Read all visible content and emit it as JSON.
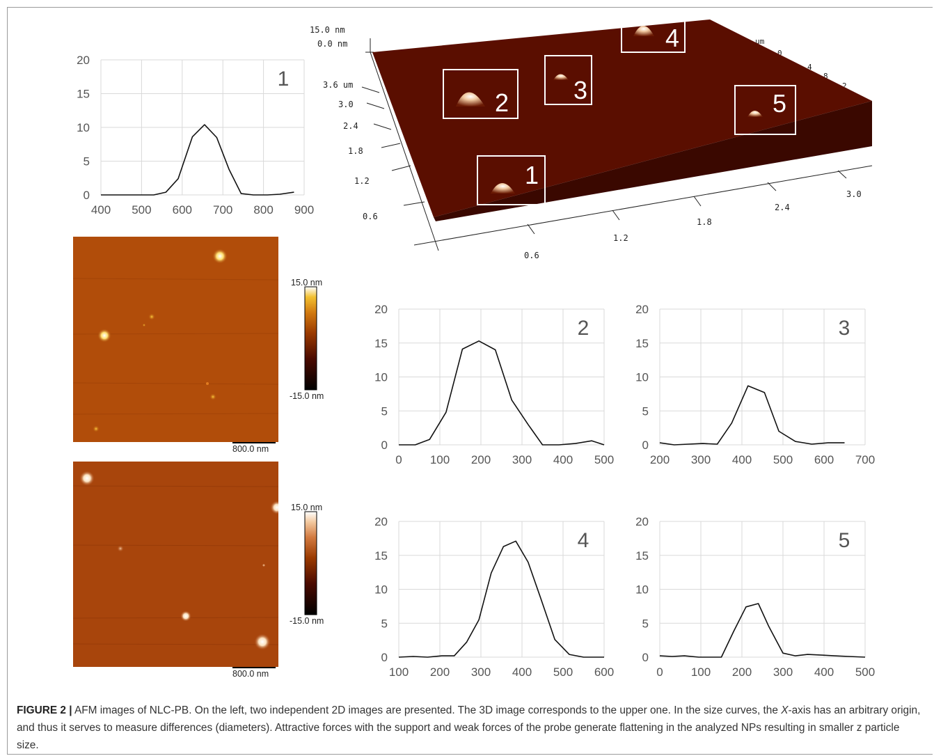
{
  "caption": {
    "label": "FIGURE 2 |",
    "text_1": " AFM images of NLC-PB. On the left, two independent 2D images are presented. The 3D image corresponds to the upper one. In the size curves, the ",
    "italic": "X",
    "text_2": "-axis has an arbitrary origin, and thus it serves to measure differences (diameters). Attractive forces with the support and weak forces of the probe generate flattening in the analyzed NPs resulting in smaller z particle size."
  },
  "afm_2d": [
    {
      "colorbar_top": "15.0 nm",
      "colorbar_bottom": "-15.0 nm",
      "scale_bar": "800.0 nm",
      "palette": [
        "#000000",
        "#4a0a00",
        "#9a3a00",
        "#d27a10",
        "#f2c030",
        "#ffffff"
      ]
    },
    {
      "colorbar_top": "15.0 nm",
      "colorbar_bottom": "-15.0 nm",
      "scale_bar": "800.0 nm",
      "palette": [
        "#000000",
        "#4a0a00",
        "#9a3a00",
        "#d27a40",
        "#f3c9a0",
        "#ffffff"
      ]
    }
  ],
  "afm_3d": {
    "z_top": "15.0 nm",
    "z_zero": "0.0 nm",
    "left_ticks": [
      "3.6 um",
      "3.0",
      "2.4",
      "1.8",
      "1.2",
      "0.6"
    ],
    "bottom_ticks": [
      "0.6",
      "1.2",
      "1.8",
      "2.4",
      "3.0"
    ],
    "right_partial": [
      "um",
      "0",
      "4",
      "8",
      "2"
    ],
    "boxes": [
      "1",
      "2",
      "3",
      "4",
      "5"
    ],
    "surface_color": "#5a0e00"
  },
  "chart_data": [
    {
      "type": "line",
      "panel": "1",
      "x": [
        400,
        430,
        460,
        490,
        530,
        560,
        590,
        625,
        655,
        685,
        715,
        745,
        775,
        810,
        840,
        875
      ],
      "y": [
        0,
        0,
        0,
        0,
        0,
        0.4,
        2.4,
        8.6,
        10.4,
        8.5,
        3.8,
        0.2,
        0,
        0,
        0.1,
        0.4
      ],
      "xlim": [
        400,
        900
      ],
      "ylim": [
        0,
        20
      ],
      "x_ticks": [
        "400",
        "500",
        "600",
        "700",
        "800",
        "900"
      ],
      "y_ticks": [
        "0",
        "5",
        "10",
        "15",
        "20"
      ]
    },
    {
      "type": "line",
      "panel": "2",
      "x": [
        0,
        40,
        75,
        115,
        155,
        195,
        235,
        275,
        315,
        350,
        390,
        430,
        470,
        500
      ],
      "y": [
        0,
        0,
        0.8,
        4.8,
        14.1,
        15.3,
        14.0,
        6.6,
        3.0,
        0,
        0,
        0.2,
        0.6,
        0
      ],
      "xlim": [
        0,
        500
      ],
      "ylim": [
        0,
        20
      ],
      "x_ticks": [
        "0",
        "100",
        "200",
        "300",
        "400",
        "500"
      ],
      "y_ticks": [
        "0",
        "5",
        "10",
        "15",
        "20"
      ]
    },
    {
      "type": "line",
      "panel": "3",
      "x": [
        200,
        235,
        270,
        305,
        340,
        375,
        415,
        455,
        490,
        530,
        570,
        610,
        650
      ],
      "y": [
        0.3,
        0,
        0.1,
        0.2,
        0.1,
        3.2,
        8.7,
        7.7,
        2.0,
        0.5,
        0.1,
        0.3,
        0.3
      ],
      "xlim": [
        200,
        700
      ],
      "ylim": [
        0,
        20
      ],
      "x_ticks": [
        "200",
        "300",
        "400",
        "500",
        "600",
        "700"
      ],
      "y_ticks": [
        "0",
        "5",
        "10",
        "15",
        "20"
      ]
    },
    {
      "type": "line",
      "panel": "4",
      "x": [
        100,
        135,
        170,
        205,
        235,
        265,
        295,
        325,
        355,
        385,
        415,
        445,
        480,
        515,
        550,
        585,
        600
      ],
      "y": [
        0,
        0.1,
        0,
        0.2,
        0.2,
        2.2,
        5.5,
        12.4,
        16.3,
        17.1,
        14.0,
        8.8,
        2.6,
        0.4,
        0,
        0,
        0
      ],
      "xlim": [
        100,
        600
      ],
      "ylim": [
        0,
        20
      ],
      "x_ticks": [
        "100",
        "200",
        "300",
        "400",
        "500",
        "600"
      ],
      "y_ticks": [
        "0",
        "5",
        "10",
        "15",
        "20"
      ]
    },
    {
      "type": "line",
      "panel": "5",
      "x": [
        0,
        30,
        60,
        95,
        125,
        150,
        180,
        210,
        240,
        265,
        300,
        330,
        360,
        395,
        425,
        460,
        500
      ],
      "y": [
        0.2,
        0.1,
        0.2,
        0,
        0,
        0,
        3.8,
        7.4,
        7.9,
        4.6,
        0.6,
        0.2,
        0.4,
        0.3,
        0.2,
        0.1,
        0
      ],
      "xlim": [
        0,
        500
      ],
      "ylim": [
        0,
        20
      ],
      "x_ticks": [
        "0",
        "100",
        "200",
        "300",
        "400",
        "500"
      ],
      "y_ticks": [
        "0",
        "5",
        "10",
        "15",
        "20"
      ]
    }
  ]
}
